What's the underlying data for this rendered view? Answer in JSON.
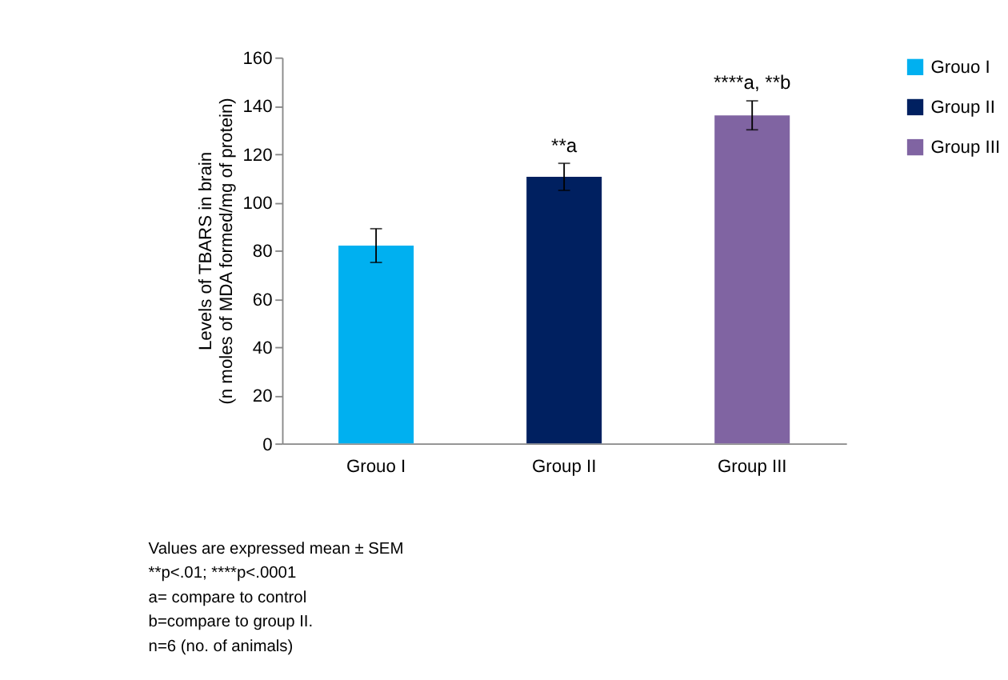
{
  "chart_data": {
    "type": "bar",
    "ylabel": "Levels of TBARS in brain\n(n moles of MDA formed/mg of protein)",
    "categories": [
      "Grouo I",
      "Group II",
      "Group III"
    ],
    "series": [
      {
        "name": "Grouo I",
        "color": "#00b0f0",
        "values": [
          82,
          null,
          null
        ],
        "errors": [
          7,
          null,
          null
        ]
      },
      {
        "name": "Group II",
        "color": "#002060",
        "values": [
          null,
          110.5,
          null
        ],
        "errors": [
          null,
          5.6,
          null
        ]
      },
      {
        "name": "Group III",
        "color": "#8064a2",
        "values": [
          null,
          null,
          136
        ],
        "errors": [
          null,
          null,
          6
        ]
      }
    ],
    "ylim": [
      0,
      160
    ],
    "yticks": [
      0,
      20,
      40,
      60,
      80,
      100,
      120,
      140,
      160
    ],
    "grid": false,
    "legend": "right",
    "annotations": [
      {
        "text": "**a",
        "x": "Group II",
        "y": 119
      },
      {
        "text": "****a, **b",
        "x": "Group III",
        "y": 145
      },
      "Values are expressed mean ± SEM",
      "**p<.01; ****p<.0001",
      "a= compare to control",
      "b=compare to group II.",
      "n=6 (no. of animals)"
    ]
  }
}
